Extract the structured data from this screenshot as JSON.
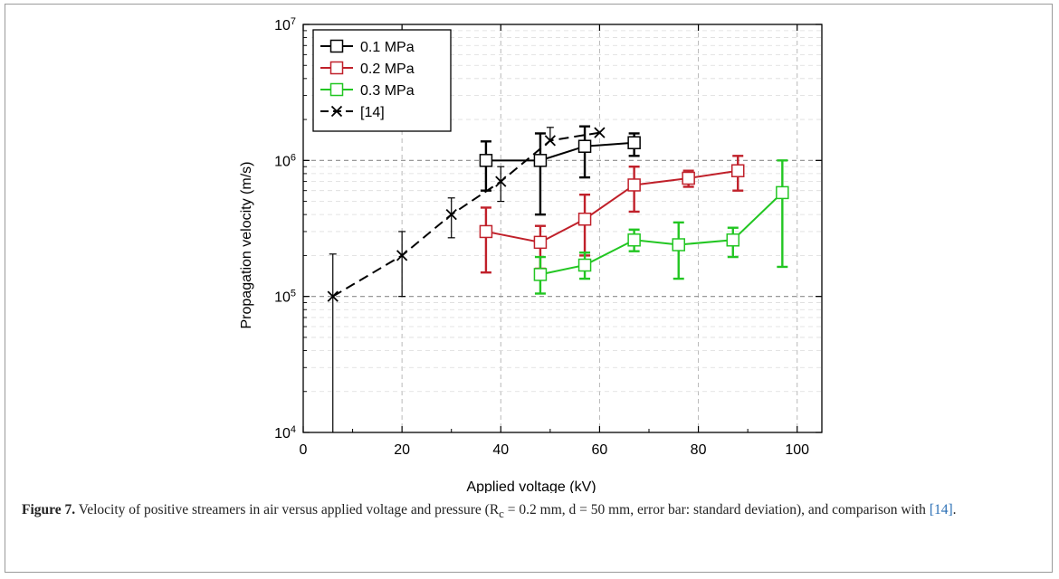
{
  "figure": {
    "label": "Figure 7.",
    "caption_before_ref": " Velocity of positive streamers in air versus applied voltage and pressure (R",
    "caption_sub": "c",
    "caption_mid": " = 0.2 mm, d = 50 mm, error bar: standard deviation), and comparison with ",
    "ref": "[14]",
    "caption_end": "."
  },
  "chart_data": {
    "type": "line",
    "title": "",
    "xlabel": "Applied voltage (kV)",
    "ylabel": "Propagation velocity (m/s)",
    "xlim": [
      0,
      105
    ],
    "ylim": [
      10000,
      10000000
    ],
    "yscale": "log",
    "x_ticks": [
      0,
      20,
      40,
      60,
      80,
      100
    ],
    "y_ticks": [
      {
        "value": 10000,
        "base": "10",
        "exp": "4"
      },
      {
        "value": 100000,
        "base": "10",
        "exp": "5"
      },
      {
        "value": 1000000,
        "base": "10",
        "exp": "6"
      },
      {
        "value": 10000000,
        "base": "10",
        "exp": "7"
      }
    ],
    "grid": true,
    "legend_position": "top-left",
    "series": [
      {
        "name": "0.1 MPa",
        "color": "#000000",
        "marker": "square",
        "dash": "solid",
        "x": [
          37,
          48,
          57,
          67
        ],
        "y": [
          1000000,
          1000000,
          1270000,
          1350000
        ],
        "err_low": [
          600000,
          400000,
          750000,
          1080000
        ],
        "err_high": [
          1380000,
          1580000,
          1780000,
          1580000
        ]
      },
      {
        "name": "0.2 MPa",
        "color": "#c0202a",
        "marker": "square",
        "dash": "solid",
        "x": [
          37,
          48,
          57,
          67,
          78,
          88
        ],
        "y": [
          300000,
          250000,
          370000,
          660000,
          740000,
          840000
        ],
        "err_low": [
          150000,
          160000,
          200000,
          420000,
          640000,
          600000
        ],
        "err_high": [
          450000,
          330000,
          560000,
          900000,
          840000,
          1080000
        ]
      },
      {
        "name": "0.3 MPa",
        "color": "#22c622",
        "marker": "square",
        "dash": "solid",
        "x": [
          48,
          57,
          67,
          76,
          87,
          97
        ],
        "y": [
          145000,
          170000,
          260000,
          240000,
          260000,
          580000
        ],
        "err_low": [
          105000,
          135000,
          215000,
          135000,
          195000,
          165000
        ],
        "err_high": [
          195000,
          210000,
          310000,
          350000,
          320000,
          1000000
        ]
      },
      {
        "name": "[14]",
        "color": "#000000",
        "marker": "x",
        "dash": "dashed",
        "x": [
          6,
          20,
          30,
          40,
          50,
          60
        ],
        "y": [
          100000,
          200000,
          400000,
          700000,
          1400000,
          1600000
        ],
        "err_low": [
          10000,
          100000,
          270000,
          500000,
          null,
          null
        ],
        "err_high": [
          205000,
          300000,
          530000,
          900000,
          1750000,
          null
        ]
      }
    ]
  },
  "colors": {
    "grid": "#b8b8b8",
    "axis": "#000000",
    "legend_border": "#000000",
    "ref_link": "#2a6fb5"
  }
}
